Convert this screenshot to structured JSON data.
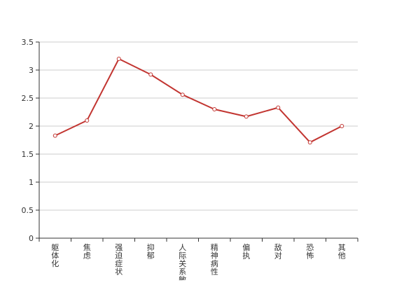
{
  "colors": {
    "line": "#c23531",
    "grid": "#cccccc",
    "axis": "#333333",
    "marker_fill": "#ffffff"
  },
  "chart_data": {
    "type": "line",
    "title": "",
    "xlabel": "",
    "ylabel": "",
    "ylim": [
      0,
      3.5
    ],
    "y_ticks": [
      "0",
      "0.5",
      "1",
      "1.5",
      "2",
      "2.5",
      "3",
      "3.5"
    ],
    "grid": true,
    "legend": "none",
    "categories": [
      "躯体化",
      "焦虑",
      "强迫症状",
      "抑郁",
      "人际关系敏感",
      "精神病性",
      "偏执",
      "敌对",
      "恐怖",
      "其他"
    ],
    "series": [
      {
        "values": [
          1.83,
          2.1,
          3.2,
          2.92,
          2.56,
          2.3,
          2.17,
          2.33,
          1.71,
          2.0
        ],
        "marker": "circle"
      }
    ]
  }
}
